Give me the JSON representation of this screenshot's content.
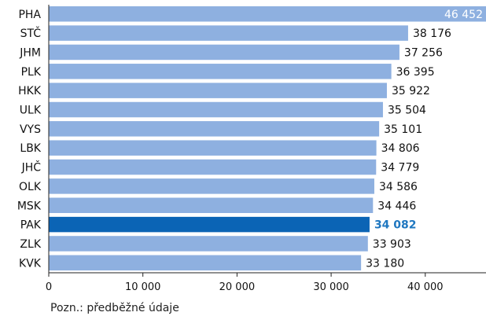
{
  "chart_data": {
    "type": "bar",
    "orientation": "horizontal",
    "categories": [
      "PHA",
      "STČ",
      "JHM",
      "PLK",
      "HKK",
      "ULK",
      "VYS",
      "LBK",
      "JHČ",
      "OLK",
      "MSK",
      "PAK",
      "ZLK",
      "KVK"
    ],
    "values": [
      46452,
      38176,
      37256,
      36395,
      35922,
      35504,
      35101,
      34806,
      34779,
      34586,
      34446,
      34082,
      33903,
      33180
    ],
    "value_labels": [
      "46 452",
      "38 176",
      "37 256",
      "36 395",
      "35 922",
      "35 504",
      "35 101",
      "34 806",
      "34 779",
      "34 586",
      "34 446",
      "34 082",
      "33 903",
      "33 180"
    ],
    "highlight": "PAK",
    "xlim": [
      0,
      46452
    ],
    "xticks": [
      0,
      10000,
      20000,
      30000,
      40000
    ],
    "xtick_labels": [
      "0",
      "10 000",
      "20 000",
      "30 000",
      "40 000"
    ],
    "grid": false,
    "colors": {
      "bar": "#8eb0e0",
      "highlight": "#0b64b5",
      "highlight_label": "#1f77c0",
      "inside_label": "#ffffff",
      "label": "#111111"
    }
  },
  "note": "Pozn.: předběžné údaje"
}
